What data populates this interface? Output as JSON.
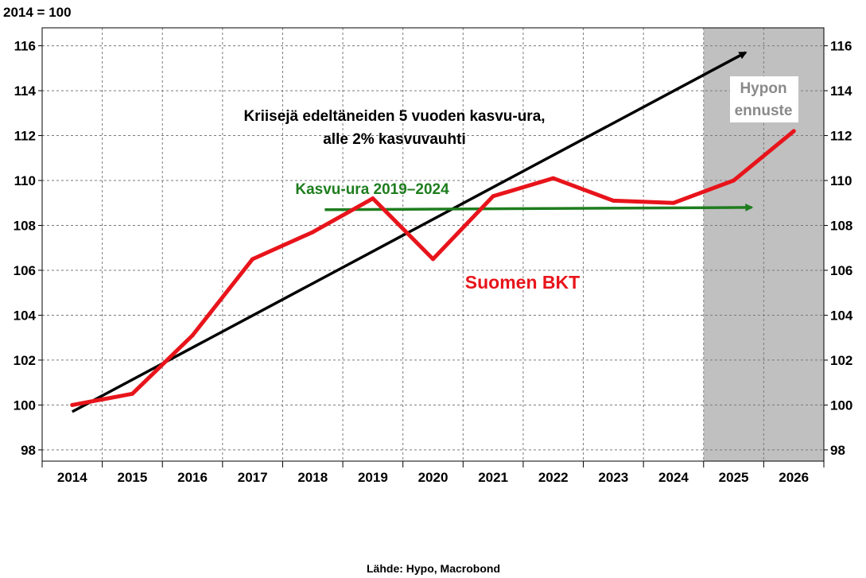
{
  "chart_data": {
    "type": "line",
    "ylabel": "2014 = 100",
    "source": "Lähde: Hypo, Macrobond",
    "x": [
      "2014",
      "2015",
      "2016",
      "2017",
      "2018",
      "2019",
      "2020",
      "2021",
      "2022",
      "2023",
      "2024",
      "2025",
      "2026"
    ],
    "ylim": [
      97.5,
      116.8
    ],
    "yticks": [
      98,
      100,
      102,
      104,
      106,
      108,
      110,
      112,
      114,
      116
    ],
    "grid": true,
    "series": [
      {
        "name": "Suomen BKT",
        "color": "#e8141b",
        "values": [
          100.0,
          100.5,
          103.1,
          106.5,
          107.7,
          109.2,
          106.5,
          109.3,
          110.1,
          109.1,
          109.0,
          110.0,
          112.2
        ]
      }
    ],
    "trend_lines": [
      {
        "label_lines": [
          "Kriisejä edeltäneiden 5 vuoden kasvu-ura,",
          "alle 2% kasvuvauhti"
        ],
        "color": "#000000",
        "from": {
          "x": 2014.0,
          "y": 99.7
        },
        "to": {
          "x": 2025.2,
          "y": 115.7
        }
      },
      {
        "label_lines": [
          "Kasvu-ura 2019–2024"
        ],
        "color": "#1e7d1e",
        "from": {
          "x": 2018.2,
          "y": 108.7
        },
        "to": {
          "x": 2025.3,
          "y": 108.8
        }
      }
    ],
    "forecast": {
      "label_lines": [
        "Hypon",
        "ennuste"
      ],
      "from": 2024.5,
      "to": 2026.5,
      "color": "#c0c0c0"
    }
  }
}
